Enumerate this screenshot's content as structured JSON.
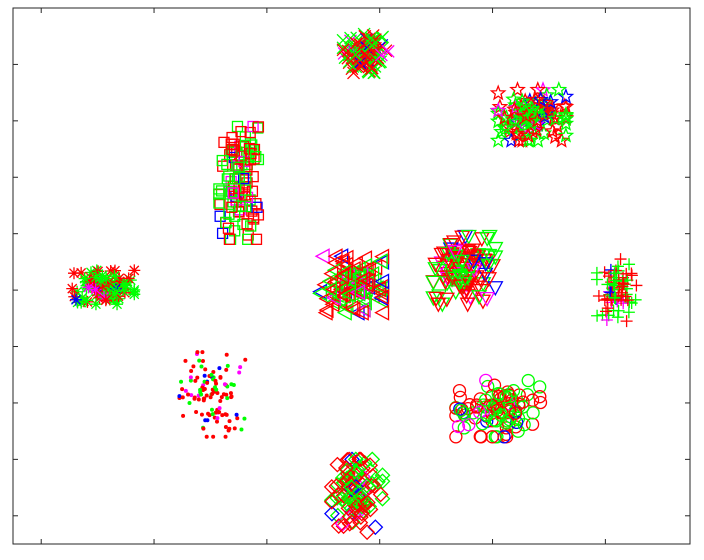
{
  "chart_data": {
    "type": "scatter",
    "title": "",
    "xlabel": "",
    "ylabel": "",
    "xlim": [
      0,
      12
    ],
    "ylim": [
      0,
      9.5
    ],
    "x_ticks": [
      0.5,
      2.5,
      4.5,
      6.5,
      8.5,
      10.5
    ],
    "y_ticks": [
      0.5,
      1.5,
      2.5,
      3.5,
      4.5,
      5.5,
      6.5,
      7.5,
      8.5,
      9.5
    ],
    "grid": false,
    "legend": "none",
    "colors": {
      "red": "#ff0000",
      "green": "#00ff00",
      "blue": "#0000ff",
      "magenta": "#ff00ff"
    },
    "clusters": [
      {
        "marker": "x-cross",
        "center": [
          6.25,
          8.7
        ],
        "spread": [
          0.4,
          0.4
        ],
        "n": {
          "red": 60,
          "green": 55,
          "blue": 8,
          "magenta": 6
        }
      },
      {
        "marker": "pentagram",
        "center": [
          9.2,
          7.6
        ],
        "spread": [
          0.6,
          0.45
        ],
        "n": {
          "red": 45,
          "green": 55,
          "blue": 10,
          "magenta": 8
        }
      },
      {
        "marker": "square",
        "center": [
          4.0,
          6.4
        ],
        "spread": [
          0.35,
          1.0
        ],
        "n": {
          "red": 55,
          "green": 45,
          "blue": 6,
          "magenta": 10
        }
      },
      {
        "marker": "asterisk",
        "center": [
          1.6,
          4.55
        ],
        "spread": [
          0.55,
          0.3
        ],
        "n": {
          "red": 40,
          "green": 55,
          "blue": 4,
          "magenta": 4
        }
      },
      {
        "marker": "triangle-left",
        "center": [
          6.0,
          4.6
        ],
        "spread": [
          0.55,
          0.5
        ],
        "n": {
          "red": 55,
          "green": 45,
          "blue": 8,
          "magenta": 10
        }
      },
      {
        "marker": "triangle-down",
        "center": [
          8.0,
          4.85
        ],
        "spread": [
          0.55,
          0.6
        ],
        "n": {
          "red": 60,
          "green": 45,
          "blue": 6,
          "magenta": 8
        }
      },
      {
        "marker": "plus",
        "center": [
          10.7,
          4.5
        ],
        "spread": [
          0.35,
          0.55
        ],
        "n": {
          "red": 35,
          "green": 35,
          "blue": 4,
          "magenta": 5
        }
      },
      {
        "marker": "dot",
        "center": [
          3.55,
          2.65
        ],
        "spread": [
          0.6,
          0.75
        ],
        "n": {
          "red": 70,
          "green": 25,
          "blue": 8,
          "magenta": 12
        }
      },
      {
        "marker": "circle",
        "center": [
          8.6,
          2.4
        ],
        "spread": [
          0.75,
          0.5
        ],
        "n": {
          "red": 45,
          "green": 45,
          "blue": 8,
          "magenta": 6
        }
      },
      {
        "marker": "diamond",
        "center": [
          6.1,
          0.85
        ],
        "spread": [
          0.45,
          0.65
        ],
        "n": {
          "red": 50,
          "green": 45,
          "blue": 8,
          "magenta": 5
        }
      }
    ]
  }
}
